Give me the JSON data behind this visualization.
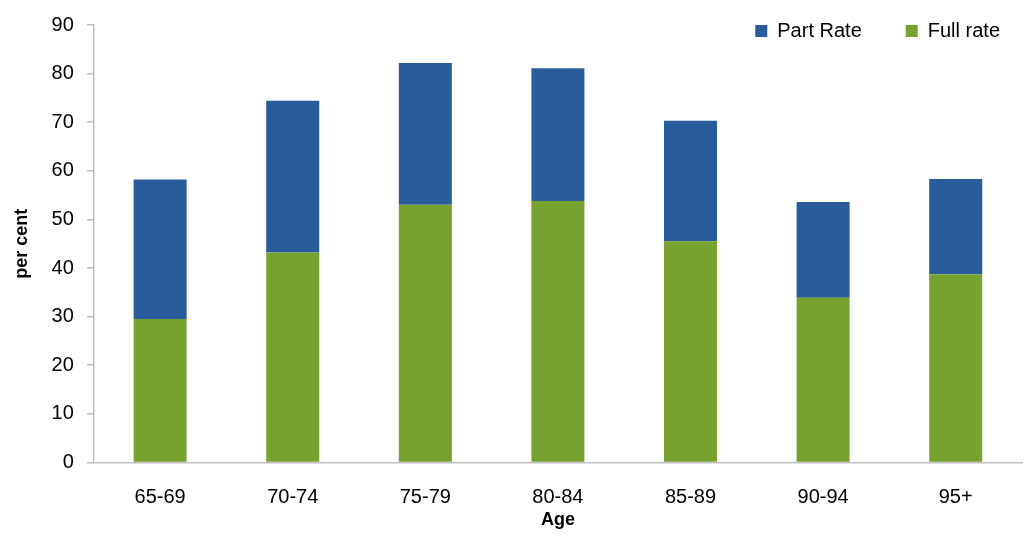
{
  "chart_data": {
    "type": "bar",
    "categories": [
      "65-69",
      "70-74",
      "75-79",
      "80-84",
      "85-89",
      "90-94",
      "95+"
    ],
    "series": [
      {
        "name": "Full rate",
        "color": "#78a22f",
        "values": [
          29.5,
          43.2,
          53.0,
          53.8,
          45.5,
          33.9,
          38.7
        ]
      },
      {
        "name": "Part Rate",
        "color": "#295c9b",
        "values": [
          28.7,
          31.2,
          29.2,
          27.3,
          24.8,
          19.7,
          19.6
        ]
      }
    ],
    "stacked": true,
    "xlabel": "Age",
    "ylabel": "per cent",
    "ylim": [
      0,
      90
    ],
    "yticks": [
      0,
      10,
      20,
      30,
      40,
      50,
      60,
      70,
      80,
      90
    ],
    "grid": false,
    "legend": "top right"
  }
}
